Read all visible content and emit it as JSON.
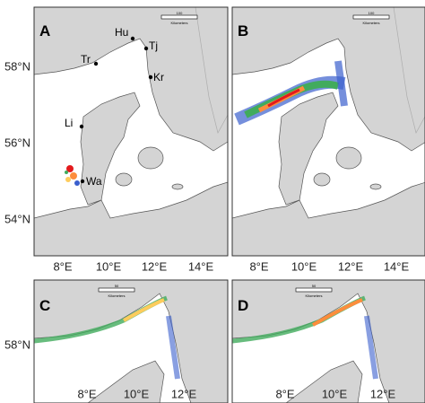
{
  "panels": [
    {
      "label": "A",
      "scale_bar": {
        "distance": "100",
        "unit": "Kilometers"
      },
      "places": [
        {
          "label": "Hu"
        },
        {
          "label": "Tj"
        },
        {
          "label": "Tr"
        },
        {
          "label": "Kr"
        },
        {
          "label": "Li"
        },
        {
          "label": "Wa"
        }
      ]
    },
    {
      "label": "B",
      "scale_bar": {
        "distance": "100",
        "unit": "Kilometers"
      }
    },
    {
      "label": "C",
      "scale_bar": {
        "distance": "50",
        "unit": "Kilometers"
      }
    },
    {
      "label": "D",
      "scale_bar": {
        "distance": "50",
        "unit": "Kilometers"
      }
    }
  ],
  "axes": {
    "top_y": [
      "58°N",
      "56°N",
      "54°N"
    ],
    "top_x": [
      "8°E",
      "10°E",
      "12°E",
      "14°E"
    ],
    "bottom_y": [
      "58°N"
    ],
    "bottom_x": [
      "8°E",
      "10°E",
      "12°E"
    ]
  }
}
